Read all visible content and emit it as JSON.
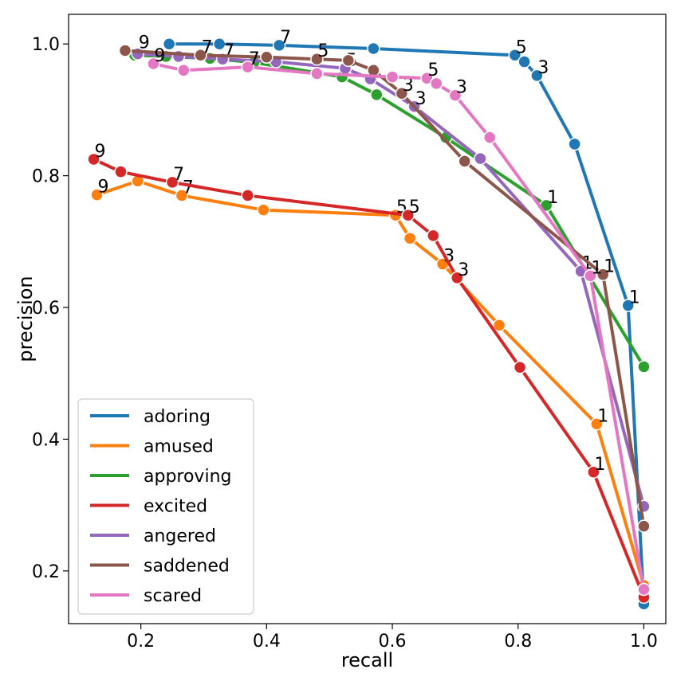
{
  "chart_data": {
    "type": "line",
    "xlabel": "recall",
    "ylabel": "precision",
    "xlim": [
      0.085,
      1.035
    ],
    "ylim": [
      0.12,
      1.045
    ],
    "xticks": [
      0.2,
      0.4,
      0.6,
      0.8,
      1.0
    ],
    "xtick_labels": [
      "0.2",
      "0.4",
      "0.6",
      "0.8",
      "1.0"
    ],
    "yticks": [
      0.2,
      0.4,
      0.6,
      0.8,
      1.0
    ],
    "ytick_labels": [
      "0.2",
      "0.4",
      "0.6",
      "0.8",
      "1.0"
    ],
    "grid": false,
    "legend_position": "lower-left",
    "series": [
      {
        "name": "adoring",
        "color": "#1f77b4",
        "points": [
          [
            0.245,
            1.0
          ],
          [
            0.325,
            1.0
          ],
          [
            0.42,
            0.998
          ],
          [
            0.57,
            0.993
          ],
          [
            0.795,
            0.983
          ],
          [
            0.81,
            0.973
          ],
          [
            0.83,
            0.952
          ],
          [
            0.89,
            0.848
          ],
          [
            0.975,
            0.603
          ],
          [
            1.0,
            0.15
          ]
        ],
        "labels": [
          {
            "x": 0.42,
            "y": 0.998,
            "text": "7"
          },
          {
            "x": 0.795,
            "y": 0.983,
            "text": "5"
          },
          {
            "x": 0.83,
            "y": 0.952,
            "text": "3"
          },
          {
            "x": 0.975,
            "y": 0.603,
            "text": "1"
          }
        ]
      },
      {
        "name": "amused",
        "color": "#ff7f0e",
        "points": [
          [
            0.13,
            0.771
          ],
          [
            0.195,
            0.792
          ],
          [
            0.265,
            0.77
          ],
          [
            0.395,
            0.748
          ],
          [
            0.605,
            0.74
          ],
          [
            0.628,
            0.705
          ],
          [
            0.68,
            0.666
          ],
          [
            0.77,
            0.573
          ],
          [
            0.925,
            0.423
          ],
          [
            1.0,
            0.178
          ]
        ],
        "labels": [
          {
            "x": 0.13,
            "y": 0.771,
            "text": "9"
          },
          {
            "x": 0.265,
            "y": 0.77,
            "text": "7"
          },
          {
            "x": 0.605,
            "y": 0.74,
            "text": "5"
          },
          {
            "x": 0.68,
            "y": 0.666,
            "text": "3"
          },
          {
            "x": 0.925,
            "y": 0.423,
            "text": "1"
          }
        ]
      },
      {
        "name": "approving",
        "color": "#2ca02c",
        "points": [
          [
            0.19,
            0.983
          ],
          [
            0.24,
            0.981
          ],
          [
            0.31,
            0.978
          ],
          [
            0.38,
            0.972
          ],
          [
            0.52,
            0.95
          ],
          [
            0.575,
            0.923
          ],
          [
            0.685,
            0.858
          ],
          [
            0.845,
            0.755
          ],
          [
            1.0,
            0.51
          ]
        ],
        "labels": [
          {
            "x": 0.845,
            "y": 0.755,
            "text": "1"
          }
        ]
      },
      {
        "name": "excited",
        "color": "#d62728",
        "points": [
          [
            0.125,
            0.825
          ],
          [
            0.168,
            0.806
          ],
          [
            0.25,
            0.79
          ],
          [
            0.37,
            0.77
          ],
          [
            0.625,
            0.74
          ],
          [
            0.665,
            0.709
          ],
          [
            0.703,
            0.645
          ],
          [
            0.803,
            0.509
          ],
          [
            0.92,
            0.35
          ],
          [
            1.0,
            0.16
          ]
        ],
        "labels": [
          {
            "x": 0.125,
            "y": 0.825,
            "text": "9"
          },
          {
            "x": 0.25,
            "y": 0.79,
            "text": "7"
          },
          {
            "x": 0.625,
            "y": 0.74,
            "text": "5"
          },
          {
            "x": 0.703,
            "y": 0.645,
            "text": "3"
          },
          {
            "x": 0.92,
            "y": 0.35,
            "text": "1"
          }
        ]
      },
      {
        "name": "angered",
        "color": "#9467bd",
        "points": [
          [
            0.195,
            0.985
          ],
          [
            0.26,
            0.981
          ],
          [
            0.33,
            0.977
          ],
          [
            0.415,
            0.973
          ],
          [
            0.525,
            0.963
          ],
          [
            0.565,
            0.947
          ],
          [
            0.635,
            0.905
          ],
          [
            0.74,
            0.826
          ],
          [
            0.9,
            0.655
          ],
          [
            1.0,
            0.298
          ]
        ],
        "labels": [
          {
            "x": 0.33,
            "y": 0.977,
            "text": "7"
          },
          {
            "x": 0.525,
            "y": 0.963,
            "text": "5"
          },
          {
            "x": 0.635,
            "y": 0.905,
            "text": "3"
          },
          {
            "x": 0.9,
            "y": 0.655,
            "text": "1"
          }
        ]
      },
      {
        "name": "saddened",
        "color": "#8c564b",
        "points": [
          [
            0.175,
            0.99
          ],
          [
            0.295,
            0.983
          ],
          [
            0.4,
            0.98
          ],
          [
            0.48,
            0.977
          ],
          [
            0.53,
            0.975
          ],
          [
            0.57,
            0.96
          ],
          [
            0.615,
            0.925
          ],
          [
            0.715,
            0.822
          ],
          [
            0.935,
            0.65
          ],
          [
            1.0,
            0.268
          ]
        ],
        "labels": [
          {
            "x": 0.195,
            "y": 0.99,
            "text": "9"
          },
          {
            "x": 0.295,
            "y": 0.983,
            "text": "7"
          },
          {
            "x": 0.48,
            "y": 0.977,
            "text": "5"
          },
          {
            "x": 0.615,
            "y": 0.925,
            "text": "3"
          },
          {
            "x": 0.935,
            "y": 0.65,
            "text": "1"
          }
        ]
      },
      {
        "name": "scared",
        "color": "#e377c2",
        "points": [
          [
            0.22,
            0.97
          ],
          [
            0.268,
            0.96
          ],
          [
            0.37,
            0.965
          ],
          [
            0.48,
            0.955
          ],
          [
            0.6,
            0.95
          ],
          [
            0.655,
            0.948
          ],
          [
            0.67,
            0.94
          ],
          [
            0.7,
            0.922
          ],
          [
            0.755,
            0.858
          ],
          [
            0.915,
            0.648
          ],
          [
            1.0,
            0.172
          ]
        ],
        "labels": [
          {
            "x": 0.22,
            "y": 0.97,
            "text": "9"
          },
          {
            "x": 0.37,
            "y": 0.965,
            "text": "7"
          },
          {
            "x": 0.655,
            "y": 0.948,
            "text": "5"
          },
          {
            "x": 0.7,
            "y": 0.922,
            "text": "3"
          },
          {
            "x": 0.915,
            "y": 0.648,
            "text": "1"
          }
        ]
      }
    ]
  }
}
